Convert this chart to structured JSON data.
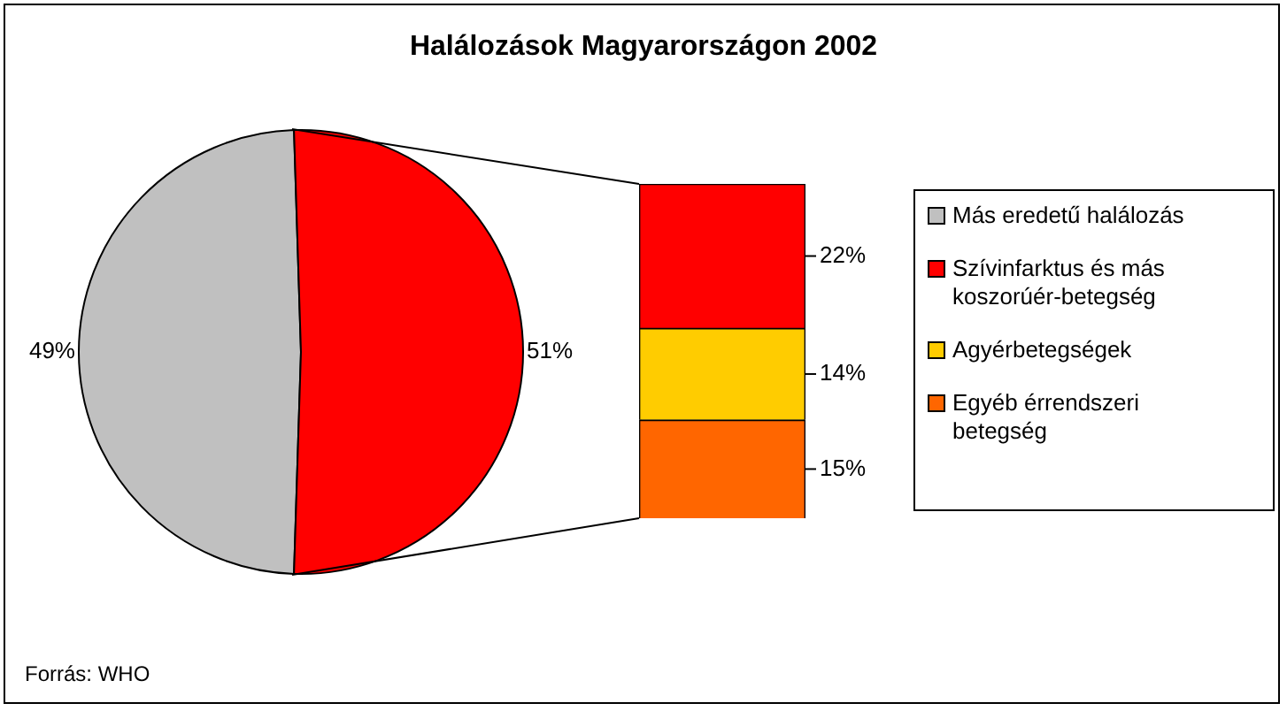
{
  "chart_data": [
    {
      "type": "pie",
      "title": "Halálozások Magyarországon 2002",
      "categories": [
        "Más eredetű halálozás",
        null
      ],
      "values": [
        49,
        51
      ],
      "colors": [
        "#c0c0c0",
        "#ff0000"
      ],
      "value_labels": [
        "49%",
        "51%"
      ],
      "legend": "right",
      "annotations": [
        "Forrás: WHO"
      ]
    },
    {
      "type": "bar",
      "stacked": true,
      "categories": [
        null
      ],
      "legend": "right",
      "series": [
        {
          "name": "Egyéb érrendszeri betegség",
          "color": "#ff6600",
          "values": [
            15
          ],
          "value_labels": [
            "15%"
          ]
        },
        {
          "name": "Agyérbetegségek",
          "color": "#ffcc00",
          "values": [
            14
          ],
          "value_labels": [
            "14%"
          ]
        },
        {
          "name": "Szívinfarktus és más koszorúér-betegség",
          "color": "#ff0000",
          "values": [
            22
          ],
          "value_labels": [
            "22%"
          ]
        }
      ]
    }
  ]
}
